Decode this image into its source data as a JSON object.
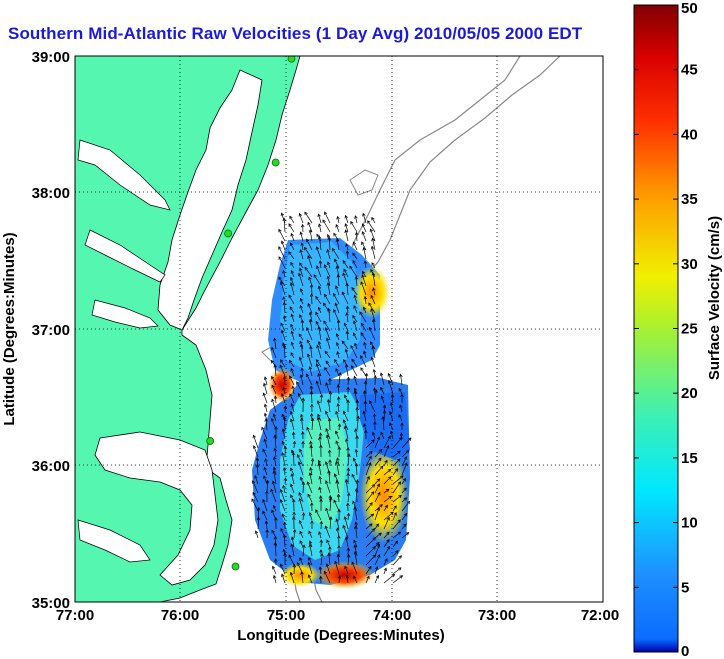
{
  "title": "Southern Mid-Atlantic Raw Velocities (1 Day Avg) 2010/05/05 2000 EDT",
  "map": {
    "xlabel": "Longitude (Degrees:Minutes)",
    "ylabel": "Latitude (Degrees:Minutes)",
    "lon_range": [
      -77,
      -72
    ],
    "lat_range": [
      35,
      39
    ],
    "x_ticks": [
      "77:00",
      "76:00",
      "75:00",
      "74:00",
      "73:00",
      "72:00"
    ],
    "y_ticks": [
      "35:00",
      "36:00",
      "37:00",
      "38:00",
      "39:00"
    ],
    "grid": "dotted",
    "land_color": "#55f7b0",
    "stations": [
      {
        "lon": -74.95,
        "lat": 38.98
      },
      {
        "lon": -75.1,
        "lat": 38.22
      },
      {
        "lon": -75.55,
        "lat": 37.7
      },
      {
        "lon": -75.72,
        "lat": 36.18
      },
      {
        "lon": -75.48,
        "lat": 35.26
      }
    ]
  },
  "colorbar": {
    "label": "Surface Velocity (cm/s)",
    "min": 0,
    "max": 50,
    "ticks": [
      "0",
      "5",
      "10",
      "15",
      "20",
      "25",
      "30",
      "35",
      "40",
      "45",
      "50"
    ],
    "colormap": "jet"
  }
}
